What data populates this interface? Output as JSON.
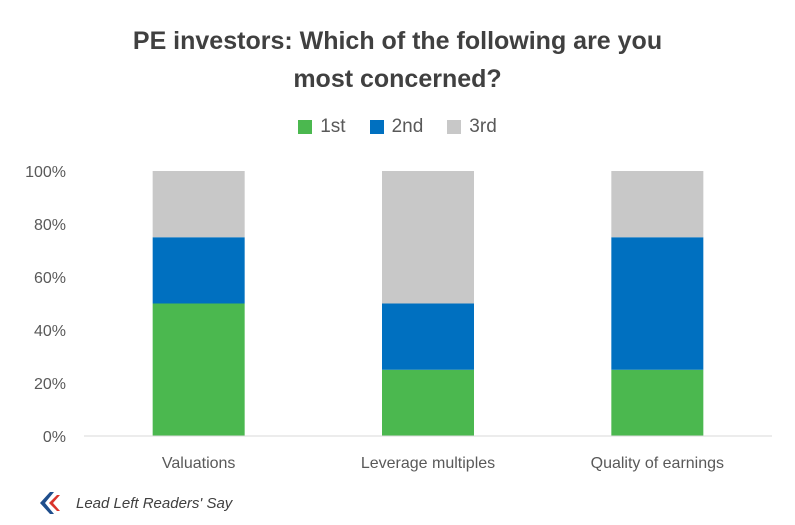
{
  "chart_data": {
    "type": "bar",
    "stacked": true,
    "title_lines": [
      "PE investors: Which of the following are you",
      "most concerned?"
    ],
    "categories": [
      "Valuations",
      "Leverage multiples",
      "Quality of earnings"
    ],
    "series": [
      {
        "name": "1st",
        "color": "#4bb84f",
        "values": [
          50,
          25,
          25
        ]
      },
      {
        "name": "2nd",
        "color": "#0070c0",
        "values": [
          25,
          25,
          50
        ]
      },
      {
        "name": "3rd",
        "color": "#c8c8c8",
        "values": [
          25,
          50,
          25
        ]
      }
    ],
    "ylim": [
      0,
      100
    ],
    "yticks": [
      "0%",
      "20%",
      "40%",
      "60%",
      "80%",
      "100%"
    ],
    "legend_position": "top",
    "grid": false
  },
  "footer": {
    "source": "Lead Left Readers' Say",
    "logo_icon": "lead-left-chevron-logo"
  }
}
